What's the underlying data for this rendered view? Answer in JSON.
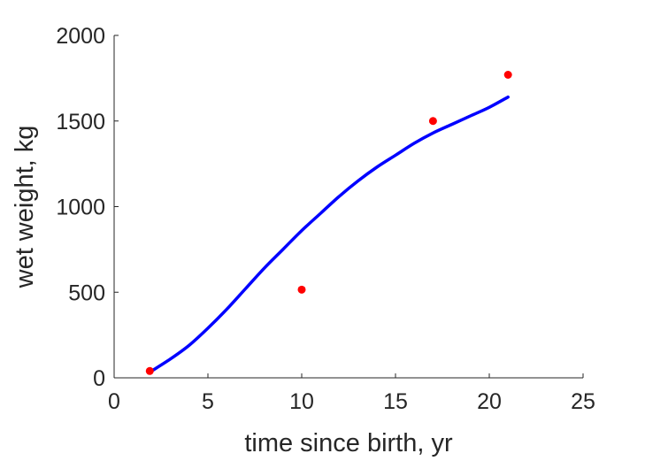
{
  "chart_data": {
    "type": "line",
    "xlabel": "time since birth, yr",
    "ylabel": "wet weight, kg",
    "xlim": [
      0,
      25
    ],
    "ylim": [
      0,
      2000
    ],
    "x_ticks": [
      0,
      5,
      10,
      15,
      20,
      25
    ],
    "y_ticks": [
      0,
      500,
      1000,
      1500,
      2000
    ],
    "grid": false,
    "legend": "none",
    "series": [
      {
        "kind": "line",
        "color": "#0000ff",
        "x": [
          2,
          3,
          4,
          5,
          6,
          7,
          8,
          9,
          10,
          11,
          12,
          13,
          14,
          15,
          16,
          17,
          18,
          19,
          20,
          21
        ],
        "y": [
          40,
          110,
          190,
          290,
          400,
          520,
          640,
          750,
          860,
          960,
          1060,
          1150,
          1230,
          1300,
          1370,
          1430,
          1480,
          1530,
          1580,
          1640
        ]
      },
      {
        "kind": "scatter",
        "color": "#ff0000",
        "x": [
          1.9,
          10,
          17,
          21
        ],
        "y": [
          40,
          515,
          1500,
          1770
        ]
      }
    ]
  }
}
